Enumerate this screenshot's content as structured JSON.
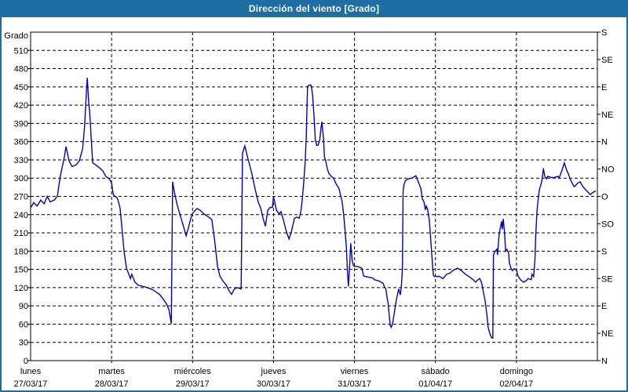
{
  "window": {
    "title": "Dirección del viento [Grado]"
  },
  "colors": {
    "title_bar": "#1c6ea4",
    "title_text": "#ffffff",
    "window_border": "#1c6ea4",
    "background": "#ffffff",
    "line": "#0000cc",
    "grid": "#000000",
    "frame": "#000000",
    "label_text": "#000000"
  },
  "chart_data": {
    "type": "line",
    "title": "Dirección del viento [Grado]",
    "grid": true,
    "legend": "none",
    "ylim": [
      0,
      540
    ],
    "y_axis_left": {
      "label": "Grado",
      "min": 0,
      "max": 540,
      "tick_step": 30,
      "tick_labels_bottom_to_top": [
        "0",
        "30",
        "60",
        "90",
        "120",
        "150",
        "180",
        "210",
        "240",
        "270",
        "300",
        "330",
        "360",
        "390",
        "420",
        "450",
        "480",
        "510"
      ]
    },
    "y_axis_right": {
      "tick_step": 45,
      "labels_bottom_to_top": [
        "N",
        "NE",
        "E",
        "SE",
        "S",
        "SO",
        "O",
        "NO",
        "N",
        "NE",
        "E",
        "SE",
        "S"
      ]
    },
    "x_axis": {
      "hours_per_day": 24,
      "total_hours": 168,
      "days": [
        {
          "name": "lunes",
          "date": "27/03/17"
        },
        {
          "name": "martes",
          "date": "28/03/17"
        },
        {
          "name": "miércoles",
          "date": "29/03/17"
        },
        {
          "name": "jueves",
          "date": "30/03/17"
        },
        {
          "name": "viernes",
          "date": "31/03/17"
        },
        {
          "name": "sábado",
          "date": "01/04/17"
        },
        {
          "name": "domingo",
          "date": "02/04/17"
        }
      ]
    },
    "series": [
      {
        "name": "Dirección del viento",
        "color": "#0000cc",
        "points": [
          [
            0,
            251
          ],
          [
            0.9,
            260
          ],
          [
            1.9,
            254
          ],
          [
            3,
            264
          ],
          [
            4,
            258
          ],
          [
            4.9,
            270
          ],
          [
            5.8,
            261
          ],
          [
            7,
            264
          ],
          [
            7.9,
            270
          ],
          [
            8.8,
            303
          ],
          [
            10,
            335
          ],
          [
            10.5,
            352
          ],
          [
            11.4,
            328
          ],
          [
            12.3,
            319
          ],
          [
            13.5,
            322
          ],
          [
            14.4,
            328
          ],
          [
            15.4,
            348
          ],
          [
            16,
            386
          ],
          [
            16.5,
            438
          ],
          [
            16.8,
            465
          ],
          [
            17.2,
            425
          ],
          [
            17.5,
            410
          ],
          [
            17.9,
            371
          ],
          [
            18.4,
            325
          ],
          [
            19.3,
            322
          ],
          [
            20.2,
            318
          ],
          [
            21.4,
            312
          ],
          [
            22.3,
            303
          ],
          [
            23.3,
            299
          ],
          [
            24,
            292
          ],
          [
            24.5,
            273
          ],
          [
            25,
            270
          ],
          [
            25.6,
            268
          ],
          [
            25.9,
            264
          ],
          [
            26.5,
            251
          ],
          [
            27,
            223
          ],
          [
            27.7,
            180
          ],
          [
            28.4,
            152
          ],
          [
            29.1,
            142
          ],
          [
            29.6,
            135
          ],
          [
            30,
            142
          ],
          [
            30.9,
            129
          ],
          [
            31.9,
            124
          ],
          [
            34,
            121
          ],
          [
            36.1,
            117
          ],
          [
            38.2,
            109
          ],
          [
            39.3,
            101
          ],
          [
            40.2,
            94
          ],
          [
            41,
            84
          ],
          [
            41.4,
            71
          ],
          [
            41.7,
            61
          ],
          [
            42.1,
            294
          ],
          [
            42.6,
            277
          ],
          [
            43.5,
            255
          ],
          [
            44.4,
            238
          ],
          [
            45.4,
            219
          ],
          [
            46.1,
            205
          ],
          [
            46.8,
            219
          ],
          [
            47.5,
            234
          ],
          [
            48,
            242
          ],
          [
            48.8,
            247
          ],
          [
            49.3,
            250
          ],
          [
            50.3,
            247
          ],
          [
            51.2,
            242
          ],
          [
            52.2,
            238
          ],
          [
            53,
            235
          ],
          [
            53.7,
            232
          ],
          [
            54.5,
            200
          ],
          [
            55.4,
            155
          ],
          [
            56.1,
            139
          ],
          [
            57,
            131
          ],
          [
            58,
            124
          ],
          [
            58.9,
            114
          ],
          [
            59.6,
            109
          ],
          [
            60.3,
            117
          ],
          [
            61.2,
            120
          ],
          [
            62.4,
            118
          ],
          [
            62.8,
            341
          ],
          [
            63.5,
            353
          ],
          [
            64.2,
            337
          ],
          [
            65,
            320
          ],
          [
            65.6,
            307
          ],
          [
            66.5,
            283
          ],
          [
            67.5,
            260
          ],
          [
            68.2,
            251
          ],
          [
            68.9,
            234
          ],
          [
            69.6,
            221
          ],
          [
            70.3,
            247
          ],
          [
            71,
            252
          ],
          [
            71.7,
            252
          ],
          [
            72,
            270
          ],
          [
            72.9,
            247
          ],
          [
            73.7,
            241
          ],
          [
            74.2,
            245
          ],
          [
            74.9,
            232
          ],
          [
            75.8,
            212
          ],
          [
            76.6,
            200
          ],
          [
            77.3,
            212
          ],
          [
            78.2,
            234
          ],
          [
            78.9,
            236
          ],
          [
            79.6,
            234
          ],
          [
            80.1,
            245
          ],
          [
            80.5,
            264
          ],
          [
            81,
            296
          ],
          [
            81.4,
            328
          ],
          [
            81.7,
            367
          ],
          [
            81.9,
            412
          ],
          [
            82.1,
            451
          ],
          [
            82.6,
            453
          ],
          [
            83.1,
            453
          ],
          [
            83.3,
            448
          ],
          [
            83.6,
            435
          ],
          [
            84,
            402
          ],
          [
            84.4,
            363
          ],
          [
            84.8,
            354
          ],
          [
            85.2,
            354
          ],
          [
            85.7,
            363
          ],
          [
            86.1,
            383
          ],
          [
            86.3,
            393
          ],
          [
            86.8,
            367
          ],
          [
            87.1,
            335
          ],
          [
            87.5,
            328
          ],
          [
            87.9,
            316
          ],
          [
            88.4,
            308
          ],
          [
            89.1,
            303
          ],
          [
            89.8,
            300
          ],
          [
            90.6,
            290
          ],
          [
            91.4,
            283
          ],
          [
            92.3,
            262
          ],
          [
            92.8,
            240
          ],
          [
            93.2,
            215
          ],
          [
            93.6,
            185
          ],
          [
            93.9,
            150
          ],
          [
            94.2,
            122
          ],
          [
            94.6,
            160
          ],
          [
            94.9,
            193
          ],
          [
            95.3,
            165
          ],
          [
            95.7,
            156
          ],
          [
            96,
            155
          ],
          [
            96.8,
            155
          ],
          [
            98.2,
            152
          ],
          [
            98.7,
            139
          ],
          [
            100.3,
            137
          ],
          [
            101.4,
            136
          ],
          [
            101.9,
            133
          ],
          [
            103.3,
            131
          ],
          [
            104.5,
            127
          ],
          [
            104.9,
            121
          ],
          [
            105.3,
            118
          ],
          [
            105.6,
            106
          ],
          [
            106,
            93
          ],
          [
            106.3,
            75
          ],
          [
            106.6,
            58
          ],
          [
            106.9,
            55
          ],
          [
            107.3,
            61
          ],
          [
            107.7,
            75
          ],
          [
            108.4,
            100
          ],
          [
            109.1,
            118
          ],
          [
            109.6,
            108
          ],
          [
            109.9,
            122
          ],
          [
            110.2,
            150
          ],
          [
            110.4,
            278
          ],
          [
            110.7,
            290
          ],
          [
            111.1,
            296
          ],
          [
            112,
            299
          ],
          [
            113,
            300
          ],
          [
            114.2,
            304
          ],
          [
            114.7,
            297
          ],
          [
            115.2,
            290
          ],
          [
            115.7,
            283
          ],
          [
            116.1,
            266
          ],
          [
            116.6,
            261
          ],
          [
            117,
            248
          ],
          [
            117.3,
            254
          ],
          [
            117.7,
            248
          ],
          [
            118.2,
            230
          ],
          [
            118.6,
            199
          ],
          [
            119,
            168
          ],
          [
            119.4,
            140
          ],
          [
            119.7,
            138
          ],
          [
            120,
            139
          ],
          [
            120.5,
            138
          ],
          [
            121,
            139
          ],
          [
            122.2,
            135
          ],
          [
            123.3,
            142
          ],
          [
            124.3,
            144
          ],
          [
            125.4,
            149
          ],
          [
            126.6,
            152
          ],
          [
            127.7,
            148
          ],
          [
            128.9,
            142
          ],
          [
            130,
            138
          ],
          [
            131.2,
            133
          ],
          [
            131.9,
            129
          ],
          [
            132.6,
            133
          ],
          [
            133.1,
            135
          ],
          [
            133.5,
            131
          ],
          [
            133.8,
            125
          ],
          [
            134.2,
            113
          ],
          [
            134.7,
            99
          ],
          [
            135.2,
            78
          ],
          [
            135.6,
            55
          ],
          [
            136.1,
            45
          ],
          [
            136.6,
            38
          ],
          [
            137,
            37
          ],
          [
            137.2,
            174
          ],
          [
            137.7,
            180
          ],
          [
            138.2,
            183
          ],
          [
            138.4,
            174
          ],
          [
            138.9,
            209
          ],
          [
            139.4,
            223
          ],
          [
            139.6,
            229
          ],
          [
            139.8,
            216
          ],
          [
            140.1,
            233
          ],
          [
            140.5,
            209
          ],
          [
            140.8,
            180
          ],
          [
            141.2,
            183
          ],
          [
            141.7,
            176
          ],
          [
            141.9,
            161
          ],
          [
            142.4,
            152
          ],
          [
            142.8,
            148
          ],
          [
            143.3,
            151
          ],
          [
            144,
            149
          ],
          [
            144.5,
            139
          ],
          [
            145.2,
            133
          ],
          [
            146.1,
            129
          ],
          [
            146.8,
            131
          ],
          [
            147.5,
            135
          ],
          [
            148.4,
            133
          ],
          [
            148.6,
            142
          ],
          [
            149.1,
            138
          ],
          [
            149.5,
            167
          ],
          [
            149.7,
            204
          ],
          [
            150.1,
            247
          ],
          [
            150.6,
            273
          ],
          [
            150.8,
            281
          ],
          [
            151.3,
            290
          ],
          [
            151.7,
            300
          ],
          [
            152,
            316
          ],
          [
            152.4,
            303
          ],
          [
            152.9,
            299
          ],
          [
            153.3,
            303
          ],
          [
            154.3,
            301
          ],
          [
            155.2,
            301
          ],
          [
            156.3,
            303
          ],
          [
            156.6,
            300
          ],
          [
            157,
            305
          ],
          [
            157.5,
            313
          ],
          [
            158.2,
            325
          ],
          [
            158.9,
            313
          ],
          [
            159.4,
            307
          ],
          [
            159.8,
            300
          ],
          [
            160.5,
            292
          ],
          [
            161,
            287
          ],
          [
            161.2,
            286
          ],
          [
            162.2,
            292
          ],
          [
            162.9,
            294
          ],
          [
            163.6,
            287
          ],
          [
            164.5,
            281
          ],
          [
            165.2,
            277
          ],
          [
            165.9,
            273
          ],
          [
            166.8,
            277
          ],
          [
            167.5,
            279
          ]
        ]
      }
    ]
  }
}
